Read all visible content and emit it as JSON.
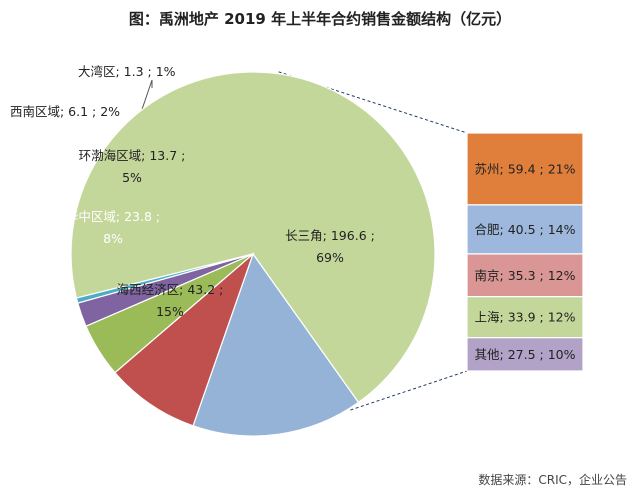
{
  "chart_data": {
    "type": "pie",
    "title": "图：禹洲地产 2019 年上半年合约销售金额结构（亿元）",
    "source": "数据来源：CRIC，企业公告",
    "unit": "亿元",
    "slices": [
      {
        "name": "长三角",
        "value": 196.6,
        "percent": "69%",
        "color": "#c4d79b",
        "label_lines": [
          "长三角; 196.6 ;",
          "69%"
        ]
      },
      {
        "name": "海西经济区",
        "value": 43.2,
        "percent": "15%",
        "color": "#95b3d7",
        "label_lines": [
          "海西经济区; 43.2 ;",
          "15%"
        ]
      },
      {
        "name": "华中区域",
        "value": 23.8,
        "percent": "8%",
        "color": "#c0504d",
        "label_lines": [
          "华中区域; 23.8 ;",
          "8%"
        ]
      },
      {
        "name": "环渤海区域",
        "value": 13.7,
        "percent": "5%",
        "color": "#9bbb59",
        "label_lines": [
          "环渤海区域; 13.7 ;",
          "5%"
        ]
      },
      {
        "name": "西南区域",
        "value": 6.1,
        "percent": "2%",
        "color": "#8064a2",
        "label_lines": [
          "西南区域; 6.1 ; 2%"
        ]
      },
      {
        "name": "大湾区",
        "value": 1.3,
        "percent": "1%",
        "color": "#4bacc6",
        "label_lines": [
          "大湾区; 1.3 ; 1%"
        ]
      }
    ],
    "breakdown_of": "长三角",
    "breakdown": [
      {
        "name": "苏州",
        "value": 59.4,
        "percent": "21%",
        "color": "#e07f3c",
        "label": "苏州; 59.4 ; 21%"
      },
      {
        "name": "合肥",
        "value": 40.5,
        "percent": "14%",
        "color": "#9db8dc",
        "label": "合肥; 40.5 ; 14%"
      },
      {
        "name": "南京",
        "value": 35.3,
        "percent": "12%",
        "color": "#d99694",
        "label": "南京; 35.3 ; 12%"
      },
      {
        "name": "上海",
        "value": 33.9,
        "percent": "12%",
        "color": "#c4d79b",
        "label": "上海; 33.9 ; 12%"
      },
      {
        "name": "其他",
        "value": 27.5,
        "percent": "10%",
        "color": "#b3a2c7",
        "label": "其他; 27.5 ; 10%"
      }
    ]
  }
}
